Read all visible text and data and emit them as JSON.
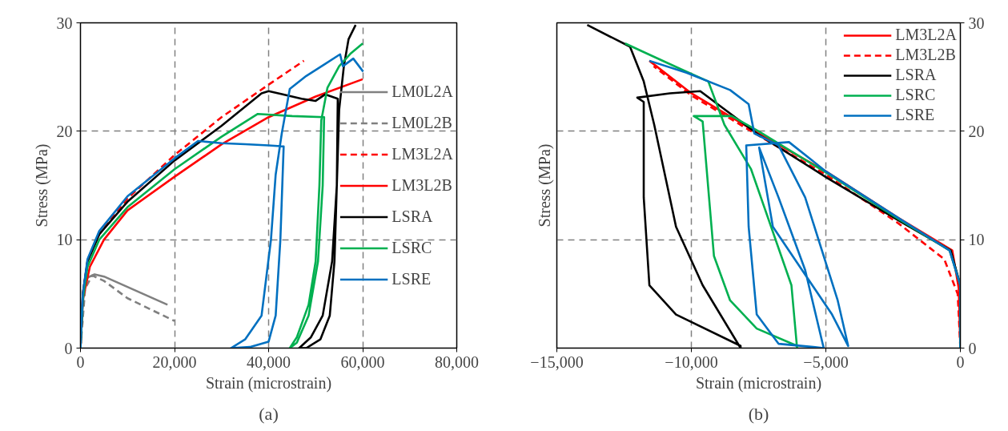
{
  "chart_data": [
    {
      "type": "line",
      "xlabel": "Strain (microstrain)",
      "ylabel": "Stress (MPa)",
      "annotations": [
        "(a)"
      ],
      "xlim": [
        0,
        80000
      ],
      "ylim": [
        0,
        30
      ],
      "xticks": [
        0,
        {
          "value": 20000,
          "label": "20,000"
        },
        {
          "value": 40000,
          "label": "40,000"
        },
        {
          "value": 60000,
          "label": "60,000"
        },
        {
          "value": 80000,
          "label": "80,000"
        }
      ],
      "yticks": [
        0,
        10,
        20,
        30
      ],
      "grid": true,
      "legend": "right",
      "series": [
        {
          "name": "LM0L2A",
          "color": "#808080",
          "line_style": "solid",
          "x": [
            0,
            300,
            800,
            1500,
            3000,
            5000,
            18500
          ],
          "values": [
            0,
            3,
            5.5,
            6.5,
            6.8,
            6.6,
            4.0
          ]
        },
        {
          "name": "LM0L2B",
          "color": "#808080",
          "line_style": "dashed",
          "x": [
            0,
            1000,
            2500,
            5000,
            10000,
            20000
          ],
          "values": [
            0,
            5.5,
            6.7,
            6.2,
            4.6,
            2.5
          ]
        },
        {
          "name": "LM3L2A",
          "color": "#ff0000",
          "line_style": "dashed",
          "x": [
            0,
            500,
            1500,
            4000,
            10000,
            20000,
            30000,
            40000,
            47500
          ],
          "values": [
            0,
            5,
            8,
            10.5,
            13.8,
            17.8,
            21.3,
            24.3,
            26.5
          ]
        },
        {
          "name": "LM3L2B",
          "color": "#ff0000",
          "line_style": "solid",
          "x": [
            0,
            500,
            2000,
            5000,
            10000,
            20000,
            30000,
            40000,
            50000,
            60000
          ],
          "values": [
            0,
            4.5,
            7.5,
            10,
            12.7,
            15.8,
            18.8,
            21.3,
            23.2,
            24.8
          ]
        },
        {
          "name": "LSRA",
          "color": "#000000",
          "line_style": "solid",
          "x": [
            0,
            500,
            1500,
            4000,
            10000,
            20000,
            30000,
            38500,
            40000,
            43000,
            47000,
            50000,
            52000,
            54700,
            54500,
            54000,
            53000,
            51000,
            48000,
            46500,
            49000,
            51500,
            53500,
            54500,
            55000,
            56000,
            57000,
            58500
          ],
          "values": [
            0,
            5,
            8,
            10.5,
            13.5,
            17.3,
            20.5,
            23.5,
            23.7,
            23.4,
            23.0,
            22.8,
            23.4,
            23.0,
            15,
            8,
            3,
            0.8,
            0,
            0,
            1,
            3,
            8,
            15,
            22,
            26,
            28.5,
            29.8
          ]
        },
        {
          "name": "LSRC",
          "color": "#00b050",
          "line_style": "solid",
          "x": [
            0,
            500,
            1500,
            4000,
            10000,
            20000,
            30000,
            37700,
            45000,
            51800,
            51500,
            50500,
            48500,
            46000,
            44500,
            46000,
            48500,
            50000,
            50800,
            51200,
            52500,
            55000,
            57500,
            60000
          ],
          "values": [
            0,
            4.5,
            7.5,
            10,
            13,
            16.5,
            19.5,
            21.6,
            21.4,
            21.3,
            15,
            8,
            3,
            0.5,
            0,
            1,
            4,
            8,
            15,
            21,
            24,
            26,
            27.2,
            28.1
          ]
        },
        {
          "name": "LSRE",
          "color": "#0070c0",
          "line_style": "solid",
          "x": [
            0,
            500,
            1500,
            4000,
            10000,
            20000,
            25000,
            30000,
            35000,
            40000,
            43200,
            42500,
            41500,
            40000,
            36000,
            32000,
            35000,
            38500,
            40500,
            41500,
            42800,
            44500,
            48000,
            52000,
            55200,
            55800,
            58000,
            60100
          ],
          "values": [
            0,
            5,
            8.2,
            10.8,
            14,
            17.5,
            19.1,
            18.9,
            18.8,
            18.7,
            18.6,
            10,
            3,
            0.6,
            0.1,
            0,
            0.8,
            3,
            10,
            16,
            19.8,
            23.9,
            25.1,
            26.2,
            27.1,
            26.0,
            26.7,
            25.5
          ]
        }
      ]
    },
    {
      "type": "line",
      "xlabel": "Strain (microstrain)",
      "ylabel": "Stress (MPa)",
      "annotations": [
        "(b)"
      ],
      "xlim": [
        -15000,
        0
      ],
      "ylim": [
        0,
        30
      ],
      "xticks": [
        {
          "value": -15000,
          "label": "−15,000"
        },
        {
          "value": -10000,
          "label": "−10,000"
        },
        {
          "value": -5000,
          "label": "−5,000"
        },
        0
      ],
      "yticks": [
        0,
        10,
        20,
        30
      ],
      "grid": true,
      "legend": "top right",
      "series": [
        {
          "name": "LM3L2A",
          "color": "#ff0000",
          "line_style": "solid",
          "x": [
            0,
            -60,
            -300,
            -2300,
            -5000,
            -7500,
            -10000,
            -11560
          ],
          "values": [
            0,
            5.5,
            9,
            12,
            16.3,
            19.8,
            23.5,
            26.5
          ]
        },
        {
          "name": "LM3L2B",
          "color": "#ff0000",
          "line_style": "dashed",
          "x": [
            0,
            -100,
            -600,
            -2300,
            -5000,
            -7500,
            -10000,
            -11400
          ],
          "values": [
            0,
            5,
            8.2,
            11.5,
            16.0,
            19.6,
            23.3,
            26.0
          ]
        },
        {
          "name": "LSRA",
          "color": "#000000",
          "line_style": "solid",
          "x": [
            0,
            0,
            -360,
            -2250,
            -4950,
            -7570,
            -9670,
            -10800,
            -12010,
            -11770,
            -11770,
            -11560,
            -10570,
            -8170,
            -8170,
            -9580,
            -10570,
            -11380,
            -11770,
            -12280,
            -13870
          ],
          "values": [
            0,
            5.8,
            9,
            11.7,
            15.7,
            19.8,
            23.7,
            23.5,
            23.1,
            22.7,
            13.9,
            5.8,
            3.1,
            0.2,
            0,
            5.8,
            11.2,
            20.6,
            24.6,
            27.8,
            29.8
          ]
        },
        {
          "name": "LSRC",
          "color": "#00b050",
          "line_style": "solid",
          "x": [
            0,
            0,
            -400,
            -2300,
            -5000,
            -7500,
            -8500,
            -9910,
            -9580,
            -9160,
            -8560,
            -7570,
            -6070,
            -6070,
            -6280,
            -7780,
            -8770,
            -9370,
            -10360,
            -11770,
            -12460
          ],
          "values": [
            0,
            5.8,
            9,
            11.9,
            16.2,
            20,
            21.4,
            21.4,
            20.9,
            8.5,
            4.4,
            1.8,
            0.2,
            0,
            5.8,
            16.5,
            20.6,
            24.6,
            25.7,
            27.3,
            28.1
          ]
        },
        {
          "name": "LSRE",
          "color": "#0070c0",
          "line_style": "solid",
          "x": [
            0,
            0,
            -400,
            -2300,
            -5000,
            -6370,
            -7960,
            -7870,
            -7570,
            -6760,
            -5470,
            -5080,
            -5770,
            -6760,
            -7480,
            -6970,
            -4770,
            -4170,
            -4560,
            -5770,
            -6760,
            -7660,
            -7870,
            -8560,
            -10180,
            -11560
          ],
          "values": [
            0,
            5.8,
            9,
            12,
            16.3,
            19.0,
            18.7,
            11.2,
            3.1,
            0.4,
            0.1,
            0,
            7.2,
            13.9,
            18.5,
            11.2,
            3.1,
            0.2,
            4.4,
            13.9,
            18.7,
            19.8,
            22.5,
            23.8,
            25.4,
            26.5
          ]
        }
      ]
    }
  ]
}
